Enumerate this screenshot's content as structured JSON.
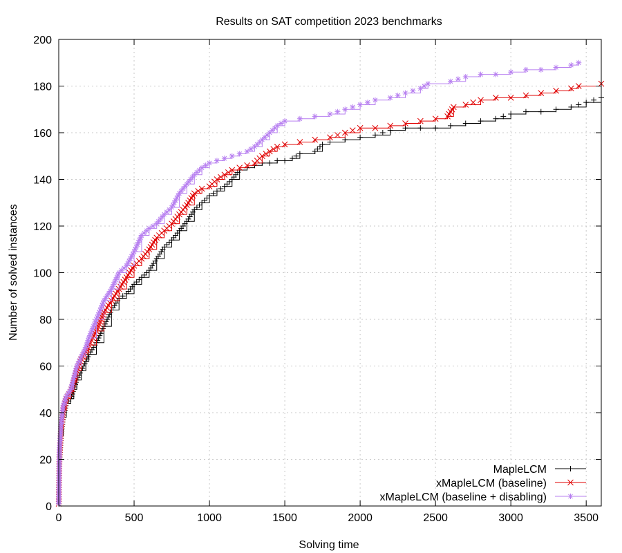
{
  "chart_data": {
    "type": "line",
    "title": "Results on SAT competition 2023 benchmarks",
    "xlabel": "Solving time",
    "ylabel": "Number of solved instances",
    "xlim": [
      0,
      3600
    ],
    "ylim": [
      0,
      200
    ],
    "x_ticks": [
      0,
      500,
      1000,
      1500,
      2000,
      2500,
      3000,
      3500
    ],
    "y_ticks": [
      0,
      20,
      40,
      60,
      80,
      100,
      120,
      140,
      160,
      180,
      200
    ],
    "grid": true,
    "legend": "bottom-right",
    "series": [
      {
        "name": "MapleLCM",
        "color": "#000000",
        "marker": "plus",
        "x": [
          0,
          5,
          15,
          30,
          50,
          80,
          100,
          120,
          150,
          180,
          200,
          250,
          300,
          350,
          400,
          450,
          500,
          550,
          600,
          650,
          700,
          750,
          800,
          850,
          900,
          950,
          1000,
          1050,
          1100,
          1150,
          1200,
          1250,
          1300,
          1350,
          1400,
          1450,
          1500,
          1550,
          1600,
          1700,
          1750,
          1800,
          1900,
          2000,
          2100,
          2200,
          2300,
          2400,
          2500,
          2600,
          2700,
          2800,
          2900,
          3000,
          3100,
          3200,
          3300,
          3400,
          3500,
          3600
        ],
        "y": [
          0,
          20,
          30,
          38,
          44,
          46,
          50,
          54,
          58,
          62,
          65,
          70,
          77,
          84,
          89,
          91,
          95,
          98,
          101,
          106,
          111,
          114,
          118,
          122,
          127,
          130,
          133,
          135,
          137,
          140,
          144,
          145,
          146,
          147,
          147,
          148,
          148,
          149,
          151,
          152,
          155,
          156,
          157,
          158,
          159,
          161,
          162,
          162,
          162,
          163,
          164,
          165,
          166,
          168,
          169,
          169,
          170,
          171,
          173,
          175
        ]
      },
      {
        "name": "xMapleLCM (baseline)",
        "color": "#e00000",
        "marker": "cross",
        "x": [
          0,
          5,
          15,
          30,
          50,
          80,
          100,
          120,
          150,
          180,
          200,
          250,
          300,
          350,
          400,
          450,
          500,
          550,
          600,
          650,
          700,
          750,
          800,
          850,
          900,
          950,
          1000,
          1050,
          1100,
          1150,
          1200,
          1250,
          1300,
          1350,
          1400,
          1450,
          1500,
          1600,
          1700,
          1800,
          1900,
          2000,
          2100,
          2200,
          2300,
          2400,
          2500,
          2580,
          2620,
          2700,
          2800,
          2900,
          3000,
          3100,
          3200,
          3300,
          3400,
          3450,
          3600
        ],
        "y": [
          0,
          22,
          33,
          41,
          46,
          49,
          53,
          58,
          63,
          66,
          69,
          75,
          83,
          88,
          93,
          98,
          103,
          106,
          110,
          115,
          118,
          121,
          125,
          129,
          134,
          136,
          137,
          140,
          142,
          144,
          145,
          146,
          147,
          150,
          152,
          154,
          155,
          156,
          157,
          158,
          160,
          162,
          162,
          163,
          164,
          165,
          166,
          167,
          171,
          172,
          174,
          175,
          175,
          176,
          177,
          178,
          179,
          180,
          181
        ]
      },
      {
        "name": "xMapleLCM (baseline + disabling)",
        "color": "#b77ff0",
        "marker": "star",
        "x": [
          0,
          5,
          15,
          30,
          50,
          80,
          100,
          120,
          150,
          180,
          200,
          250,
          300,
          350,
          400,
          450,
          500,
          550,
          600,
          650,
          700,
          750,
          800,
          850,
          900,
          950,
          1000,
          1050,
          1100,
          1150,
          1200,
          1250,
          1300,
          1350,
          1400,
          1450,
          1500,
          1600,
          1700,
          1800,
          1900,
          2000,
          2100,
          2200,
          2300,
          2400,
          2450,
          2600,
          2700,
          2800,
          2900,
          3000,
          3100,
          3200,
          3300,
          3400,
          3450
        ],
        "y": [
          0,
          24,
          35,
          43,
          47,
          50,
          55,
          60,
          64,
          68,
          72,
          80,
          88,
          93,
          100,
          103,
          109,
          116,
          119,
          121,
          125,
          128,
          134,
          138,
          142,
          145,
          147,
          148,
          149,
          150,
          151,
          152,
          154,
          157,
          160,
          163,
          165,
          166,
          167,
          168,
          170,
          172,
          174,
          175,
          177,
          179,
          181,
          182,
          184,
          185,
          185,
          186,
          187,
          187,
          188,
          189,
          190
        ]
      }
    ]
  }
}
